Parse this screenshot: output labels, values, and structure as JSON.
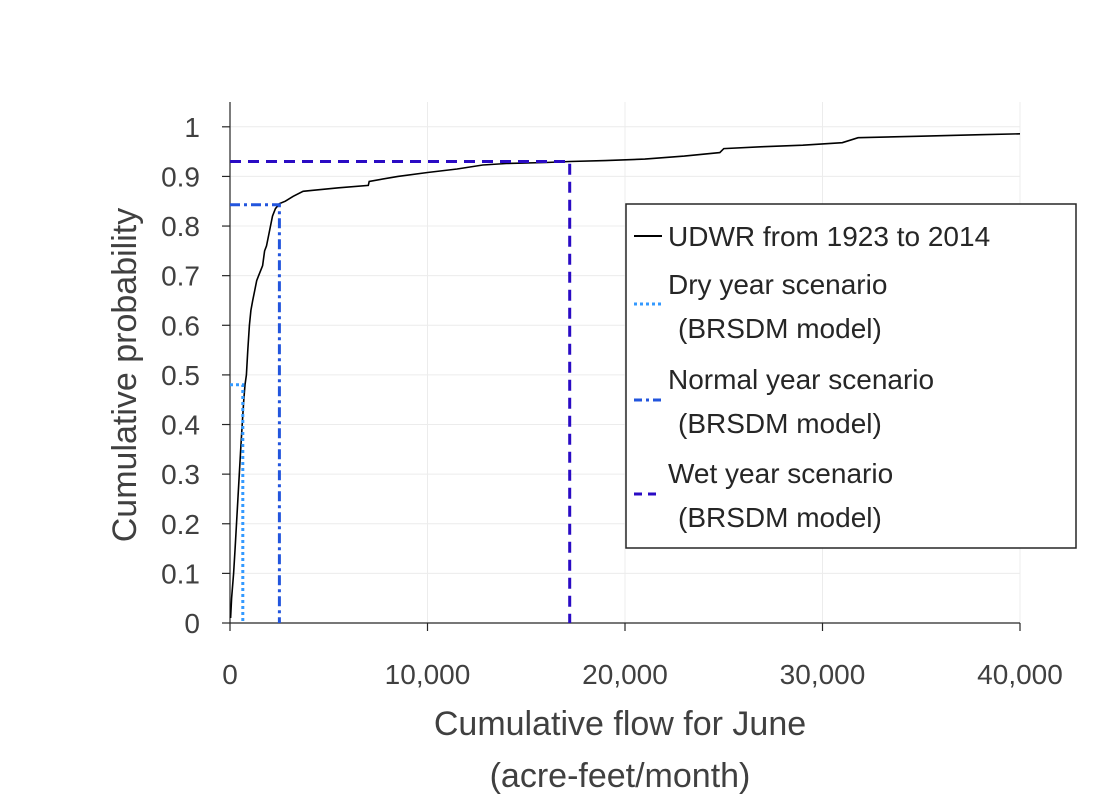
{
  "chart_data": {
    "type": "line",
    "xlabel_line1": "Cumulative flow for June",
    "xlabel_line2": "(acre-feet/month)",
    "ylabel": "Cumulative probability",
    "xlim": [
      0,
      40000
    ],
    "ylim": [
      0,
      1.05
    ],
    "x_ticks": [
      0,
      10000,
      20000,
      30000,
      40000
    ],
    "x_tick_labels": [
      "0",
      "10,000",
      "20,000",
      "30,000",
      "40,000"
    ],
    "y_ticks": [
      0,
      0.1,
      0.2,
      0.3,
      0.4,
      0.5,
      0.6,
      0.7,
      0.8,
      0.9,
      1
    ],
    "y_tick_labels": [
      "0",
      "0.1",
      "0.2",
      "0.3",
      "0.4",
      "0.5",
      "0.6",
      "0.7",
      "0.8",
      "0.9",
      "1"
    ],
    "grid": true,
    "legend_position": "right",
    "series": [
      {
        "name": "UDWR from 1923 to 2014",
        "color": "#000000",
        "style": "solid",
        "x": [
          30,
          80,
          180,
          260,
          330,
          400,
          470,
          540,
          620,
          700,
          760,
          830,
          900,
          980,
          1060,
          1150,
          1250,
          1350,
          1450,
          1550,
          1650,
          1750,
          1850,
          1950,
          2050,
          2150,
          2300,
          2500,
          2800,
          3200,
          3700,
          4200,
          5500,
          7000,
          7050,
          8500,
          10000,
          11500,
          12800,
          14000,
          16000,
          17200,
          19000,
          21000,
          23000,
          24800,
          25000,
          27000,
          29000,
          31000,
          31800,
          35000,
          38000,
          40000
        ],
        "y": [
          0.01,
          0.05,
          0.1,
          0.15,
          0.2,
          0.25,
          0.3,
          0.35,
          0.4,
          0.45,
          0.48,
          0.5,
          0.55,
          0.6,
          0.63,
          0.65,
          0.67,
          0.69,
          0.7,
          0.71,
          0.72,
          0.75,
          0.76,
          0.78,
          0.8,
          0.82,
          0.835,
          0.845,
          0.85,
          0.86,
          0.87,
          0.872,
          0.877,
          0.882,
          0.89,
          0.9,
          0.908,
          0.915,
          0.923,
          0.926,
          0.928,
          0.93,
          0.932,
          0.935,
          0.941,
          0.948,
          0.956,
          0.96,
          0.963,
          0.968,
          0.978,
          0.981,
          0.984,
          0.986
        ]
      },
      {
        "name": "Dry year scenario",
        "name_line2": "(BRSDM model)",
        "color": "#3399ff",
        "style": "dotted",
        "x": [
          0,
          650,
          650
        ],
        "y": [
          0.48,
          0.48,
          0
        ]
      },
      {
        "name": "Normal year scenario",
        "name_line2": "(BRSDM model)",
        "color": "#2255dd",
        "style": "dashdot",
        "x": [
          0,
          2500,
          2500
        ],
        "y": [
          0.843,
          0.843,
          0
        ]
      },
      {
        "name": "Wet year scenario",
        "name_line2": "(BRSDM model)",
        "color": "#2a0bc4",
        "style": "dashed",
        "x": [
          0,
          17200,
          17200
        ],
        "y": [
          0.93,
          0.93,
          0
        ]
      }
    ]
  }
}
